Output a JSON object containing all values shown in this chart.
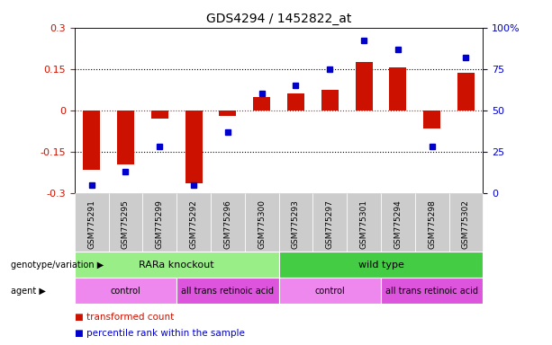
{
  "title": "GDS4294 / 1452822_at",
  "samples": [
    "GSM775291",
    "GSM775295",
    "GSM775299",
    "GSM775292",
    "GSM775296",
    "GSM775300",
    "GSM775293",
    "GSM775297",
    "GSM775301",
    "GSM775294",
    "GSM775298",
    "GSM775302"
  ],
  "bar_values": [
    -0.215,
    -0.195,
    -0.03,
    -0.265,
    -0.02,
    0.05,
    0.06,
    0.075,
    0.175,
    0.155,
    -0.065,
    0.135
  ],
  "percentile_values": [
    5,
    13,
    28,
    5,
    37,
    60,
    65,
    75,
    92,
    87,
    28,
    82
  ],
  "bar_color": "#cc1100",
  "dot_color": "#0000cc",
  "ylim_left": [
    -0.3,
    0.3
  ],
  "ylim_right": [
    0,
    100
  ],
  "yticks_left": [
    -0.3,
    -0.15,
    0,
    0.15,
    0.3
  ],
  "ytick_labels_left": [
    "-0.3",
    "-0.15",
    "0",
    "0.15",
    "0.3"
  ],
  "yticks_right": [
    0,
    25,
    50,
    75,
    100
  ],
  "ytick_labels_right": [
    "0",
    "25",
    "50",
    "75",
    "100%"
  ],
  "hlines": [
    -0.15,
    0,
    0.15
  ],
  "hline_colors": [
    "black",
    "red",
    "black"
  ],
  "hline_styles": [
    "dotted",
    "dotted",
    "dotted"
  ],
  "genotype_groups": [
    {
      "label": "RARa knockout",
      "start": 0,
      "end": 5,
      "color": "#99ee88"
    },
    {
      "label": "wild type",
      "start": 6,
      "end": 11,
      "color": "#44cc44"
    }
  ],
  "agent_groups": [
    {
      "label": "control",
      "start": 0,
      "end": 2,
      "color": "#ee88ee"
    },
    {
      "label": "all trans retinoic acid",
      "start": 3,
      "end": 5,
      "color": "#dd55dd"
    },
    {
      "label": "control",
      "start": 6,
      "end": 8,
      "color": "#ee88ee"
    },
    {
      "label": "all trans retinoic acid",
      "start": 9,
      "end": 11,
      "color": "#dd55dd"
    }
  ],
  "legend_items": [
    {
      "label": "transformed count",
      "color": "#cc1100"
    },
    {
      "label": "percentile rank within the sample",
      "color": "#0000cc"
    }
  ],
  "bar_width": 0.5,
  "background_color": "#ffffff",
  "genotype_row_label": "genotype/variation",
  "agent_row_label": "agent",
  "xtick_bg_color": "#cccccc",
  "right_ytick_labels": [
    "0",
    "25",
    "50",
    "75",
    "100%"
  ]
}
